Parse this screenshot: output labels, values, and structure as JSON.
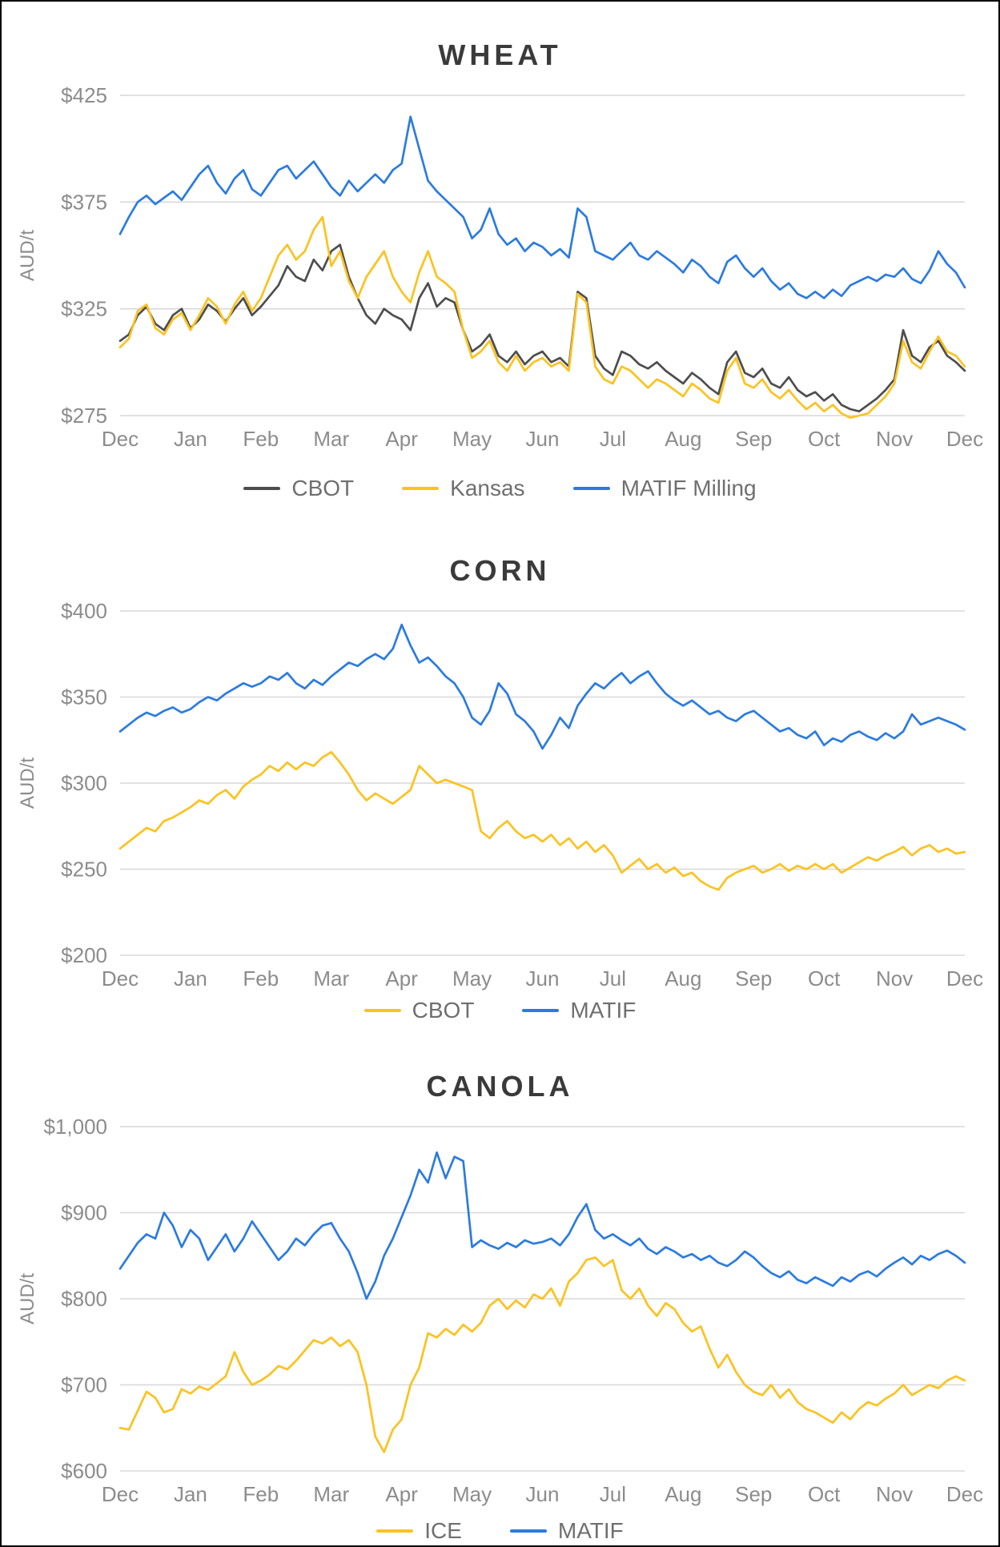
{
  "colors": {
    "grid": "#d8d8d8",
    "axis_text": "#8c8c8c",
    "title_text": "#3a3a3a",
    "legend_text": "#6f6f6f",
    "cbot_gray": "#4d4d4d",
    "yellow": "#FCC220",
    "blue": "#2B7BE0"
  },
  "chart_data": [
    {
      "type": "line",
      "title": "WHEAT",
      "ylabel": "AUD/t",
      "ylim": [
        275,
        425
      ],
      "grid": true,
      "legend_position": "bottom",
      "yticks": [
        {
          "value": 275,
          "label": "$275"
        },
        {
          "value": 325,
          "label": "$325"
        },
        {
          "value": 375,
          "label": "$375"
        },
        {
          "value": 425,
          "label": "$425"
        }
      ],
      "x_labels": [
        "Dec",
        "Jan",
        "Feb",
        "Mar",
        "Apr",
        "May",
        "Jun",
        "Jul",
        "Aug",
        "Sep",
        "Oct",
        "Nov",
        "Dec"
      ],
      "series": [
        {
          "name": "CBOT",
          "color": "#4d4d4d",
          "values": [
            310,
            313,
            322,
            326,
            318,
            315,
            322,
            325,
            316,
            320,
            327,
            324,
            319,
            325,
            330,
            322,
            326,
            331,
            336,
            345,
            340,
            338,
            348,
            343,
            352,
            355,
            340,
            330,
            322,
            318,
            325,
            322,
            320,
            315,
            330,
            337,
            326,
            330,
            328,
            315,
            305,
            308,
            313,
            303,
            300,
            305,
            299,
            303,
            305,
            300,
            302,
            298,
            333,
            330,
            303,
            297,
            294,
            305,
            303,
            299,
            297,
            300,
            296,
            293,
            290,
            295,
            292,
            288,
            285,
            300,
            305,
            295,
            293,
            297,
            290,
            288,
            293,
            287,
            284,
            286,
            282,
            285,
            280,
            278,
            277,
            280,
            283,
            287,
            292,
            315,
            303,
            300,
            307,
            310,
            303,
            300,
            296
          ]
        },
        {
          "name": "Kansas",
          "color": "#FCC220",
          "values": [
            307,
            311,
            324,
            327,
            316,
            313,
            320,
            323,
            315,
            322,
            330,
            326,
            318,
            327,
            333,
            324,
            330,
            340,
            350,
            355,
            348,
            352,
            362,
            368,
            345,
            352,
            338,
            330,
            340,
            346,
            352,
            340,
            333,
            328,
            342,
            352,
            340,
            337,
            333,
            315,
            302,
            305,
            310,
            300,
            296,
            303,
            296,
            300,
            302,
            298,
            300,
            296,
            332,
            328,
            298,
            292,
            290,
            298,
            296,
            292,
            288,
            292,
            290,
            287,
            284,
            290,
            287,
            283,
            281,
            296,
            302,
            290,
            288,
            292,
            286,
            283,
            287,
            282,
            278,
            281,
            277,
            280,
            276,
            274,
            275,
            276,
            280,
            284,
            290,
            310,
            300,
            297,
            305,
            312,
            305,
            303,
            298
          ]
        },
        {
          "name": "MATIF Milling",
          "color": "#2B7BE0",
          "values": [
            360,
            368,
            375,
            378,
            374,
            377,
            380,
            376,
            382,
            388,
            392,
            384,
            379,
            386,
            390,
            381,
            378,
            384,
            390,
            392,
            386,
            390,
            394,
            388,
            382,
            378,
            385,
            380,
            384,
            388,
            384,
            390,
            393,
            415,
            400,
            385,
            380,
            376,
            372,
            368,
            358,
            362,
            372,
            360,
            355,
            358,
            352,
            356,
            354,
            350,
            353,
            349,
            372,
            368,
            352,
            350,
            348,
            352,
            356,
            350,
            348,
            352,
            349,
            346,
            342,
            348,
            345,
            340,
            337,
            347,
            350,
            344,
            340,
            344,
            338,
            334,
            337,
            332,
            330,
            333,
            330,
            334,
            331,
            336,
            338,
            340,
            338,
            341,
            340,
            344,
            339,
            337,
            343,
            352,
            346,
            342,
            335
          ]
        }
      ]
    },
    {
      "type": "line",
      "title": "CORN",
      "ylabel": "AUD/t",
      "ylim": [
        200,
        400
      ],
      "grid": true,
      "legend_position": "bottom",
      "yticks": [
        {
          "value": 200,
          "label": "$200"
        },
        {
          "value": 250,
          "label": "$250"
        },
        {
          "value": 300,
          "label": "$300"
        },
        {
          "value": 350,
          "label": "$350"
        },
        {
          "value": 400,
          "label": "$400"
        }
      ],
      "x_labels": [
        "Dec",
        "Jan",
        "Feb",
        "Mar",
        "Apr",
        "May",
        "Jun",
        "Jul",
        "Aug",
        "Sep",
        "Oct",
        "Nov",
        "Dec"
      ],
      "series": [
        {
          "name": "CBOT",
          "color": "#FCC220",
          "values": [
            262,
            266,
            270,
            274,
            272,
            278,
            280,
            283,
            286,
            290,
            288,
            293,
            296,
            291,
            298,
            302,
            305,
            310,
            307,
            312,
            308,
            312,
            310,
            315,
            318,
            312,
            305,
            296,
            290,
            294,
            291,
            288,
            292,
            296,
            310,
            305,
            300,
            302,
            300,
            298,
            296,
            272,
            268,
            274,
            278,
            272,
            268,
            270,
            266,
            270,
            264,
            268,
            262,
            266,
            260,
            264,
            258,
            248,
            252,
            256,
            250,
            253,
            248,
            251,
            246,
            248,
            243,
            240,
            238,
            245,
            248,
            250,
            252,
            248,
            250,
            253,
            249,
            252,
            250,
            253,
            250,
            253,
            248,
            251,
            254,
            257,
            255,
            258,
            260,
            263,
            258,
            262,
            264,
            260,
            262,
            259,
            260
          ]
        },
        {
          "name": "MATIF",
          "color": "#2B7BE0",
          "values": [
            330,
            334,
            338,
            341,
            339,
            342,
            344,
            341,
            343,
            347,
            350,
            348,
            352,
            355,
            358,
            356,
            358,
            362,
            360,
            364,
            358,
            355,
            360,
            357,
            362,
            366,
            370,
            368,
            372,
            375,
            372,
            378,
            392,
            380,
            370,
            373,
            368,
            362,
            358,
            350,
            338,
            334,
            342,
            358,
            352,
            340,
            336,
            330,
            320,
            328,
            338,
            332,
            345,
            352,
            358,
            355,
            360,
            364,
            358,
            362,
            365,
            358,
            352,
            348,
            345,
            348,
            344,
            340,
            342,
            338,
            336,
            340,
            342,
            338,
            334,
            330,
            332,
            328,
            326,
            330,
            322,
            326,
            324,
            328,
            330,
            327,
            325,
            329,
            326,
            330,
            340,
            334,
            336,
            338,
            336,
            334,
            331
          ]
        }
      ]
    },
    {
      "type": "line",
      "title": "CANOLA",
      "ylabel": "AUD/t",
      "ylim": [
        600,
        1000
      ],
      "grid": true,
      "legend_position": "bottom",
      "yticks": [
        {
          "value": 600,
          "label": "$600"
        },
        {
          "value": 700,
          "label": "$700"
        },
        {
          "value": 800,
          "label": "$800"
        },
        {
          "value": 900,
          "label": "$900"
        },
        {
          "value": 1000,
          "label": "$1,000"
        }
      ],
      "x_labels": [
        "Dec",
        "Jan",
        "Feb",
        "Mar",
        "Apr",
        "May",
        "Jun",
        "Jul",
        "Aug",
        "Sep",
        "Oct",
        "Nov",
        "Dec"
      ],
      "series": [
        {
          "name": "ICE",
          "color": "#FCC220",
          "values": [
            650,
            648,
            670,
            692,
            685,
            668,
            672,
            695,
            690,
            698,
            694,
            702,
            710,
            738,
            715,
            700,
            705,
            712,
            722,
            718,
            728,
            740,
            752,
            748,
            755,
            745,
            752,
            738,
            700,
            640,
            622,
            648,
            660,
            700,
            720,
            760,
            755,
            765,
            758,
            770,
            762,
            772,
            792,
            800,
            788,
            798,
            790,
            805,
            800,
            812,
            792,
            820,
            830,
            845,
            848,
            838,
            845,
            810,
            800,
            812,
            792,
            780,
            795,
            788,
            772,
            762,
            768,
            742,
            720,
            735,
            715,
            700,
            692,
            688,
            700,
            685,
            695,
            680,
            672,
            668,
            662,
            656,
            668,
            660,
            672,
            680,
            676,
            684,
            690,
            700,
            688,
            694,
            700,
            696,
            705,
            710,
            705
          ]
        },
        {
          "name": "MATIF",
          "color": "#2B7BE0",
          "values": [
            835,
            850,
            865,
            875,
            870,
            900,
            885,
            860,
            880,
            870,
            845,
            860,
            875,
            855,
            870,
            890,
            875,
            860,
            845,
            855,
            870,
            862,
            875,
            885,
            888,
            870,
            855,
            830,
            800,
            820,
            850,
            870,
            895,
            920,
            950,
            935,
            970,
            940,
            965,
            960,
            860,
            868,
            862,
            858,
            865,
            860,
            868,
            864,
            866,
            870,
            862,
            875,
            895,
            910,
            880,
            870,
            875,
            868,
            862,
            870,
            858,
            852,
            860,
            855,
            848,
            852,
            845,
            850,
            842,
            838,
            845,
            855,
            848,
            838,
            830,
            825,
            832,
            822,
            818,
            825,
            820,
            815,
            825,
            820,
            828,
            832,
            826,
            835,
            842,
            848,
            840,
            850,
            845,
            852,
            856,
            850,
            842
          ]
        }
      ]
    }
  ]
}
